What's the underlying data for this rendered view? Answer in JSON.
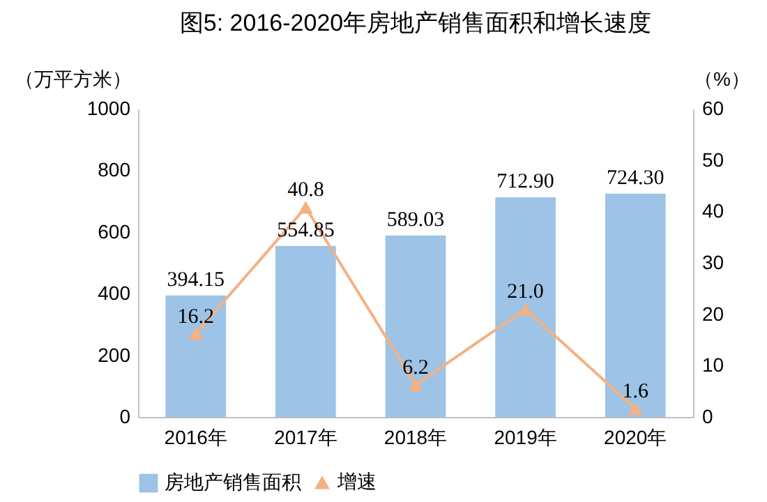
{
  "chart_data": {
    "type": "bar",
    "title": "图5: 2016-2020年房地产销售面积和增长速度",
    "ylabel": "（万平方米）",
    "y2label": "（%）",
    "categories": [
      "2016年",
      "2017年",
      "2018年",
      "2019年",
      "2020年"
    ],
    "series": [
      {
        "name": "房地产销售面积",
        "type": "bar",
        "color": "#9dc3e6",
        "values": [
          394.15,
          554.85,
          589.03,
          712.9,
          724.3
        ],
        "value_labels": [
          "394.15",
          "554.85",
          "589.03",
          "712.90",
          "724.30"
        ]
      },
      {
        "name": "增速",
        "type": "line",
        "axis": "y2",
        "color": "#f4b183",
        "marker": "triangle",
        "values": [
          16.2,
          40.8,
          6.2,
          21.0,
          1.6
        ],
        "value_labels": [
          "16.2",
          "40.8",
          "6.2",
          "21.0",
          "1.6"
        ]
      }
    ],
    "ylim": [
      0,
      1000
    ],
    "yticks": [
      0,
      200,
      400,
      600,
      800,
      1000
    ],
    "y2lim": [
      0,
      60
    ],
    "y2ticks": [
      0,
      10,
      20,
      30,
      40,
      50,
      60
    ],
    "grid": false,
    "legend": "bottom"
  }
}
